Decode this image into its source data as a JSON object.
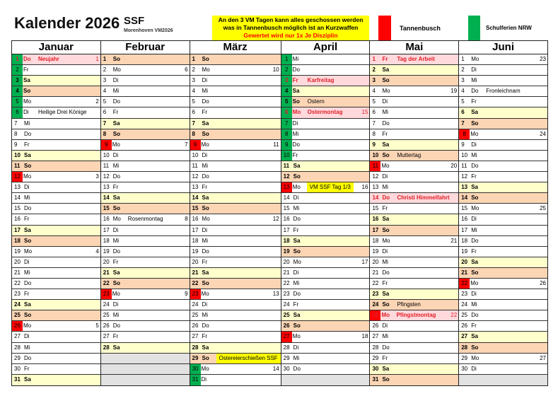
{
  "header": {
    "title": "Kalender 2026",
    "club": "SSF",
    "subtitle": "Morenhoven VM2026",
    "notice": [
      "An den 3 VM Tagen kann alles geschossen werden",
      "was in Tannenbusch möglich ist an Kurzwaffen",
      "Gewertet wird nur 1x Je Disziplin"
    ],
    "legend": [
      {
        "label": "Tannenbusch",
        "color": "#ff0000"
      },
      {
        "label": "Schulferien NRW",
        "color": "#00b050"
      }
    ]
  },
  "colors": {
    "saturday": "#ffffcc",
    "sunday": "#fcd5b4",
    "holiday": "#ffd9dc",
    "holiday_text": "#e0202a",
    "green": "#00b050",
    "red": "#ff0000",
    "empty": "#e2e2e2",
    "highlight": "#ffff00"
  },
  "months": [
    {
      "name": "Januar",
      "days": [
        {
          "d": "1",
          "wd": "Do",
          "note": "Neujahr",
          "holiday": true,
          "mark": "green",
          "kw": "1"
        },
        {
          "d": "2",
          "wd": "Fr",
          "mark": "green"
        },
        {
          "d": "3",
          "wd": "Sa",
          "mark": "green"
        },
        {
          "d": "4",
          "wd": "So",
          "mark": "green"
        },
        {
          "d": "5",
          "wd": "Mo",
          "mark": "green",
          "kw": "2"
        },
        {
          "d": "6",
          "wd": "Di",
          "mark": "green",
          "note": "Heilige Drei Könige"
        },
        {
          "d": "7",
          "wd": "Mi"
        },
        {
          "d": "8",
          "wd": "Do"
        },
        {
          "d": "9",
          "wd": "Fr"
        },
        {
          "d": "10",
          "wd": "Sa"
        },
        {
          "d": "11",
          "wd": "So"
        },
        {
          "d": "12",
          "wd": "Mo",
          "mark": "red",
          "kw": "3"
        },
        {
          "d": "13",
          "wd": "Di"
        },
        {
          "d": "14",
          "wd": "Mi"
        },
        {
          "d": "15",
          "wd": "Do"
        },
        {
          "d": "16",
          "wd": "Fr"
        },
        {
          "d": "17",
          "wd": "Sa"
        },
        {
          "d": "18",
          "wd": "So"
        },
        {
          "d": "19",
          "wd": "Mo",
          "kw": "4"
        },
        {
          "d": "20",
          "wd": "Di"
        },
        {
          "d": "21",
          "wd": "Mi"
        },
        {
          "d": "22",
          "wd": "Do"
        },
        {
          "d": "23",
          "wd": "Fr"
        },
        {
          "d": "24",
          "wd": "Sa"
        },
        {
          "d": "25",
          "wd": "So"
        },
        {
          "d": "26",
          "wd": "Mo",
          "mark": "red",
          "kw": "5"
        },
        {
          "d": "27",
          "wd": "Di"
        },
        {
          "d": "28",
          "wd": "Mi"
        },
        {
          "d": "29",
          "wd": "Do"
        },
        {
          "d": "30",
          "wd": "Fr"
        },
        {
          "d": "31",
          "wd": "Sa"
        }
      ]
    },
    {
      "name": "Februar",
      "days": [
        {
          "d": "1",
          "wd": "So"
        },
        {
          "d": "2",
          "wd": "Mo",
          "kw": "6"
        },
        {
          "d": "3",
          "wd": "Di"
        },
        {
          "d": "4",
          "wd": "Mi"
        },
        {
          "d": "5",
          "wd": "Do"
        },
        {
          "d": "6",
          "wd": "Fr"
        },
        {
          "d": "7",
          "wd": "Sa"
        },
        {
          "d": "8",
          "wd": "So"
        },
        {
          "d": "9",
          "wd": "Mo",
          "mark": "red",
          "kw": "7"
        },
        {
          "d": "10",
          "wd": "Di"
        },
        {
          "d": "11",
          "wd": "Mi"
        },
        {
          "d": "12",
          "wd": "Do"
        },
        {
          "d": "13",
          "wd": "Fr"
        },
        {
          "d": "14",
          "wd": "Sa"
        },
        {
          "d": "15",
          "wd": "So"
        },
        {
          "d": "16",
          "wd": "Mo",
          "note": "Rosenmontag",
          "kw": "8"
        },
        {
          "d": "17",
          "wd": "Di"
        },
        {
          "d": "18",
          "wd": "Mi"
        },
        {
          "d": "19",
          "wd": "Do"
        },
        {
          "d": "20",
          "wd": "Fr"
        },
        {
          "d": "21",
          "wd": "Sa"
        },
        {
          "d": "22",
          "wd": "So"
        },
        {
          "d": "23",
          "wd": "Mo",
          "mark": "red",
          "kw": "9"
        },
        {
          "d": "24",
          "wd": "Di"
        },
        {
          "d": "25",
          "wd": "Mi"
        },
        {
          "d": "26",
          "wd": "Do"
        },
        {
          "d": "27",
          "wd": "Fr"
        },
        {
          "d": "28",
          "wd": "Sa"
        }
      ]
    },
    {
      "name": "März",
      "days": [
        {
          "d": "1",
          "wd": "So"
        },
        {
          "d": "2",
          "wd": "Mo",
          "kw": "10"
        },
        {
          "d": "3",
          "wd": "Di"
        },
        {
          "d": "4",
          "wd": "Mi"
        },
        {
          "d": "5",
          "wd": "Do"
        },
        {
          "d": "6",
          "wd": "Fr"
        },
        {
          "d": "7",
          "wd": "Sa"
        },
        {
          "d": "8",
          "wd": "So"
        },
        {
          "d": "9",
          "wd": "Mo",
          "mark": "red",
          "kw": "11"
        },
        {
          "d": "10",
          "wd": "Di"
        },
        {
          "d": "11",
          "wd": "Mi"
        },
        {
          "d": "12",
          "wd": "Do"
        },
        {
          "d": "13",
          "wd": "Fr"
        },
        {
          "d": "14",
          "wd": "Sa"
        },
        {
          "d": "15",
          "wd": "So"
        },
        {
          "d": "16",
          "wd": "Mo",
          "kw": "12"
        },
        {
          "d": "17",
          "wd": "Di"
        },
        {
          "d": "18",
          "wd": "Mi"
        },
        {
          "d": "19",
          "wd": "Do"
        },
        {
          "d": "20",
          "wd": "Fr"
        },
        {
          "d": "21",
          "wd": "Sa"
        },
        {
          "d": "22",
          "wd": "So"
        },
        {
          "d": "23",
          "wd": "Mo",
          "mark": "red",
          "kw": "13"
        },
        {
          "d": "24",
          "wd": "Di"
        },
        {
          "d": "25",
          "wd": "Mi"
        },
        {
          "d": "26",
          "wd": "Do"
        },
        {
          "d": "27",
          "wd": "Fr"
        },
        {
          "d": "28",
          "wd": "Sa"
        },
        {
          "d": "29",
          "wd": "So",
          "note": "Ostereierschießen SSF",
          "highlight": true
        },
        {
          "d": "30",
          "wd": "Mo",
          "mark": "green",
          "kw": "14"
        },
        {
          "d": "31",
          "wd": "Di",
          "mark": "green"
        }
      ]
    },
    {
      "name": "April",
      "days": [
        {
          "d": "1",
          "wd": "Mi",
          "mark": "green"
        },
        {
          "d": "2",
          "wd": "Do",
          "mark": "green"
        },
        {
          "d": "3",
          "wd": "Fr",
          "mark": "green",
          "note": "Karfreitag",
          "holiday": true
        },
        {
          "d": "4",
          "wd": "Sa",
          "mark": "green"
        },
        {
          "d": "5",
          "wd": "So",
          "mark": "green",
          "note": "Ostern"
        },
        {
          "d": "6",
          "wd": "Mo",
          "mark": "green",
          "note": "Ostermontag",
          "holiday": true,
          "kw": "15"
        },
        {
          "d": "7",
          "wd": "Di",
          "mark": "green"
        },
        {
          "d": "8",
          "wd": "Mi",
          "mark": "green"
        },
        {
          "d": "9",
          "wd": "Do",
          "mark": "green"
        },
        {
          "d": "10",
          "wd": "Fr",
          "mark": "green"
        },
        {
          "d": "11",
          "wd": "Sa"
        },
        {
          "d": "12",
          "wd": "So"
        },
        {
          "d": "13",
          "wd": "Mo",
          "mark": "red",
          "note": "VM SSF Tag 1/3",
          "highlight": true,
          "kw": "16"
        },
        {
          "d": "14",
          "wd": "Di"
        },
        {
          "d": "15",
          "wd": "Mi"
        },
        {
          "d": "16",
          "wd": "Do"
        },
        {
          "d": "17",
          "wd": "Fr"
        },
        {
          "d": "18",
          "wd": "Sa"
        },
        {
          "d": "19",
          "wd": "So"
        },
        {
          "d": "20",
          "wd": "Mo",
          "kw": "17"
        },
        {
          "d": "21",
          "wd": "Di"
        },
        {
          "d": "22",
          "wd": "Mi"
        },
        {
          "d": "23",
          "wd": "Do"
        },
        {
          "d": "24",
          "wd": "Fr"
        },
        {
          "d": "25",
          "wd": "Sa"
        },
        {
          "d": "26",
          "wd": "So"
        },
        {
          "d": "27",
          "wd": "Mo",
          "mark": "red",
          "kw": "18"
        },
        {
          "d": "28",
          "wd": "Di"
        },
        {
          "d": "29",
          "wd": "Mi"
        },
        {
          "d": "30",
          "wd": "Do"
        }
      ]
    },
    {
      "name": "Mai",
      "days": [
        {
          "d": "1",
          "wd": "Fr",
          "note": "Tag der Arbeit",
          "holiday": true
        },
        {
          "d": "2",
          "wd": "Sa"
        },
        {
          "d": "3",
          "wd": "So"
        },
        {
          "d": "4",
          "wd": "Mo",
          "kw": "19"
        },
        {
          "d": "5",
          "wd": "Di"
        },
        {
          "d": "6",
          "wd": "Mi"
        },
        {
          "d": "7",
          "wd": "Do"
        },
        {
          "d": "8",
          "wd": "Fr"
        },
        {
          "d": "9",
          "wd": "Sa"
        },
        {
          "d": "10",
          "wd": "So",
          "note": "Muttertag"
        },
        {
          "d": "11",
          "wd": "Mo",
          "mark": "red",
          "kw": "20"
        },
        {
          "d": "12",
          "wd": "Di"
        },
        {
          "d": "13",
          "wd": "Mi"
        },
        {
          "d": "14",
          "wd": "Do",
          "note": "Christi Himmelfahrt",
          "holiday": true
        },
        {
          "d": "15",
          "wd": "Fr"
        },
        {
          "d": "16",
          "wd": "Sa"
        },
        {
          "d": "17",
          "wd": "So"
        },
        {
          "d": "18",
          "wd": "Mo",
          "kw": "21"
        },
        {
          "d": "19",
          "wd": "Di"
        },
        {
          "d": "20",
          "wd": "Mi"
        },
        {
          "d": "21",
          "wd": "Do"
        },
        {
          "d": "22",
          "wd": "Fr"
        },
        {
          "d": "23",
          "wd": "Sa"
        },
        {
          "d": "24",
          "wd": "So",
          "note": "Pfingsten"
        },
        {
          "d": "25",
          "wd": "Mo",
          "mark": "red",
          "note": "Pfingstmontag",
          "holiday": true,
          "kw": "22"
        },
        {
          "d": "26",
          "wd": "Di"
        },
        {
          "d": "27",
          "wd": "Mi"
        },
        {
          "d": "28",
          "wd": "Do"
        },
        {
          "d": "29",
          "wd": "Fr"
        },
        {
          "d": "30",
          "wd": "Sa"
        },
        {
          "d": "31",
          "wd": "So"
        }
      ]
    },
    {
      "name": "Juni",
      "days": [
        {
          "d": "1",
          "wd": "Mo",
          "kw": "23"
        },
        {
          "d": "2",
          "wd": "Di"
        },
        {
          "d": "3",
          "wd": "Mi"
        },
        {
          "d": "4",
          "wd": "Do",
          "note": "Fronleichnam"
        },
        {
          "d": "5",
          "wd": "Fr"
        },
        {
          "d": "6",
          "wd": "Sa"
        },
        {
          "d": "7",
          "wd": "So"
        },
        {
          "d": "8",
          "wd": "Mo",
          "mark": "red",
          "kw": "24"
        },
        {
          "d": "9",
          "wd": "Di"
        },
        {
          "d": "10",
          "wd": "Mi"
        },
        {
          "d": "11",
          "wd": "Do"
        },
        {
          "d": "12",
          "wd": "Fr"
        },
        {
          "d": "13",
          "wd": "Sa"
        },
        {
          "d": "14",
          "wd": "So"
        },
        {
          "d": "15",
          "wd": "Mo",
          "kw": "25"
        },
        {
          "d": "16",
          "wd": "Di"
        },
        {
          "d": "17",
          "wd": "Mi"
        },
        {
          "d": "18",
          "wd": "Do"
        },
        {
          "d": "19",
          "wd": "Fr"
        },
        {
          "d": "20",
          "wd": "Sa"
        },
        {
          "d": "21",
          "wd": "So"
        },
        {
          "d": "22",
          "wd": "Mo",
          "mark": "red",
          "kw": "26"
        },
        {
          "d": "23",
          "wd": "Di"
        },
        {
          "d": "24",
          "wd": "Mi"
        },
        {
          "d": "25",
          "wd": "Do"
        },
        {
          "d": "26",
          "wd": "Fr"
        },
        {
          "d": "27",
          "wd": "Sa"
        },
        {
          "d": "28",
          "wd": "So"
        },
        {
          "d": "29",
          "wd": "Mo",
          "kw": "27"
        },
        {
          "d": "30",
          "wd": "Di"
        }
      ]
    }
  ]
}
